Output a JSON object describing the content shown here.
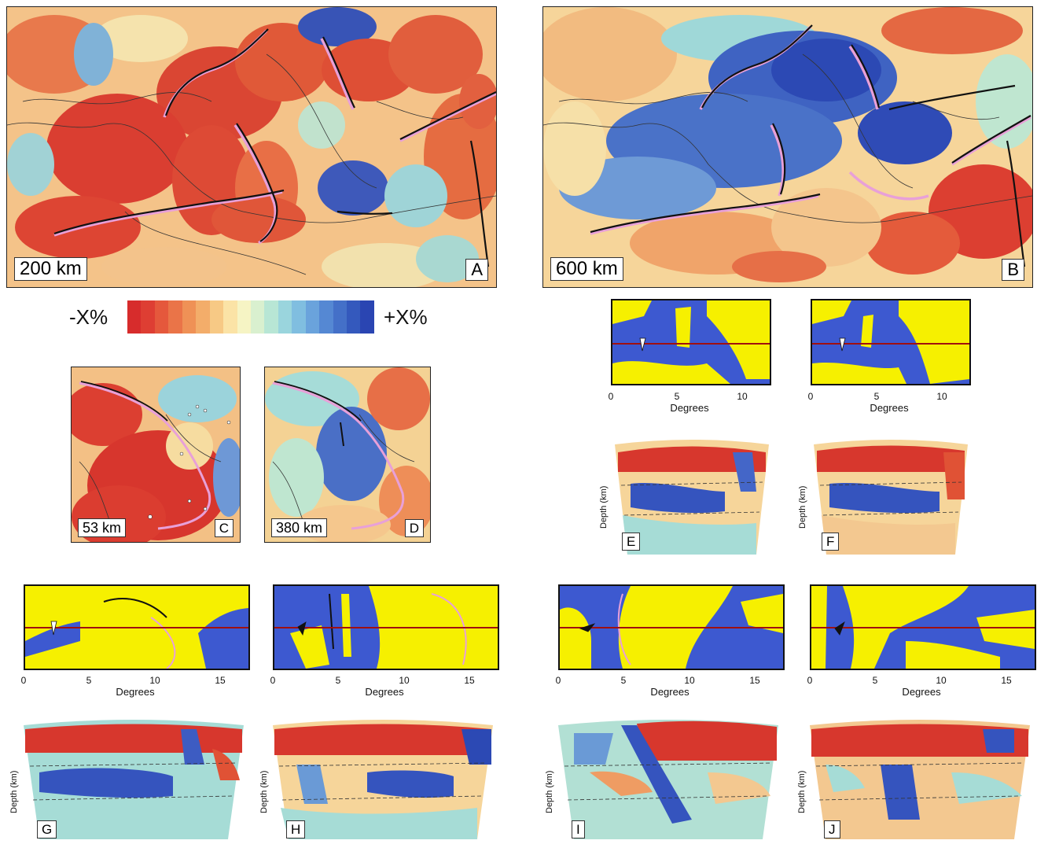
{
  "maps": {
    "a": {
      "depth": "200 km",
      "letter": "A"
    },
    "b": {
      "depth": "600 km",
      "letter": "B"
    },
    "c": {
      "depth": "53 km",
      "letter": "C"
    },
    "d": {
      "depth": "380 km",
      "letter": "D"
    }
  },
  "colorbar": {
    "min_label": "-X%",
    "max_label": "+X%",
    "colors": [
      "#d72c2c",
      "#de3e33",
      "#e5583c",
      "#ea7448",
      "#ef9156",
      "#f3ad6a",
      "#f7c985",
      "#fbe3a6",
      "#f6f4c4",
      "#d9f0cf",
      "#b8e6d5",
      "#9ad5dd",
      "#80bee0",
      "#6aa3dc",
      "#5588d3",
      "#4470c8",
      "#3459bd",
      "#2a45b2"
    ]
  },
  "sections": {
    "e": {
      "letter": "E",
      "ticks": [
        "0",
        "5",
        "10"
      ],
      "xlabel": "Degrees",
      "ylabel": "Depth (km)"
    },
    "f": {
      "letter": "F",
      "ticks": [
        "0",
        "5",
        "10"
      ],
      "xlabel": "Degrees",
      "ylabel": "Depth (km)"
    },
    "g": {
      "letter": "G",
      "ticks": [
        "0",
        "5",
        "10",
        "15"
      ],
      "xlabel": "Degrees",
      "ylabel": "Depth (km)"
    },
    "h": {
      "letter": "H",
      "ticks": [
        "0",
        "5",
        "10",
        "15"
      ],
      "xlabel": "Degrees",
      "ylabel": "Depth (km)"
    },
    "i": {
      "letter": "I",
      "ticks": [
        "0",
        "5",
        "10",
        "15"
      ],
      "xlabel": "Degrees",
      "ylabel": "Depth (km)"
    },
    "j": {
      "letter": "J",
      "ticks": [
        "0",
        "5",
        "10",
        "15"
      ],
      "xlabel": "Degrees",
      "ylabel": "Depth (km)"
    }
  }
}
